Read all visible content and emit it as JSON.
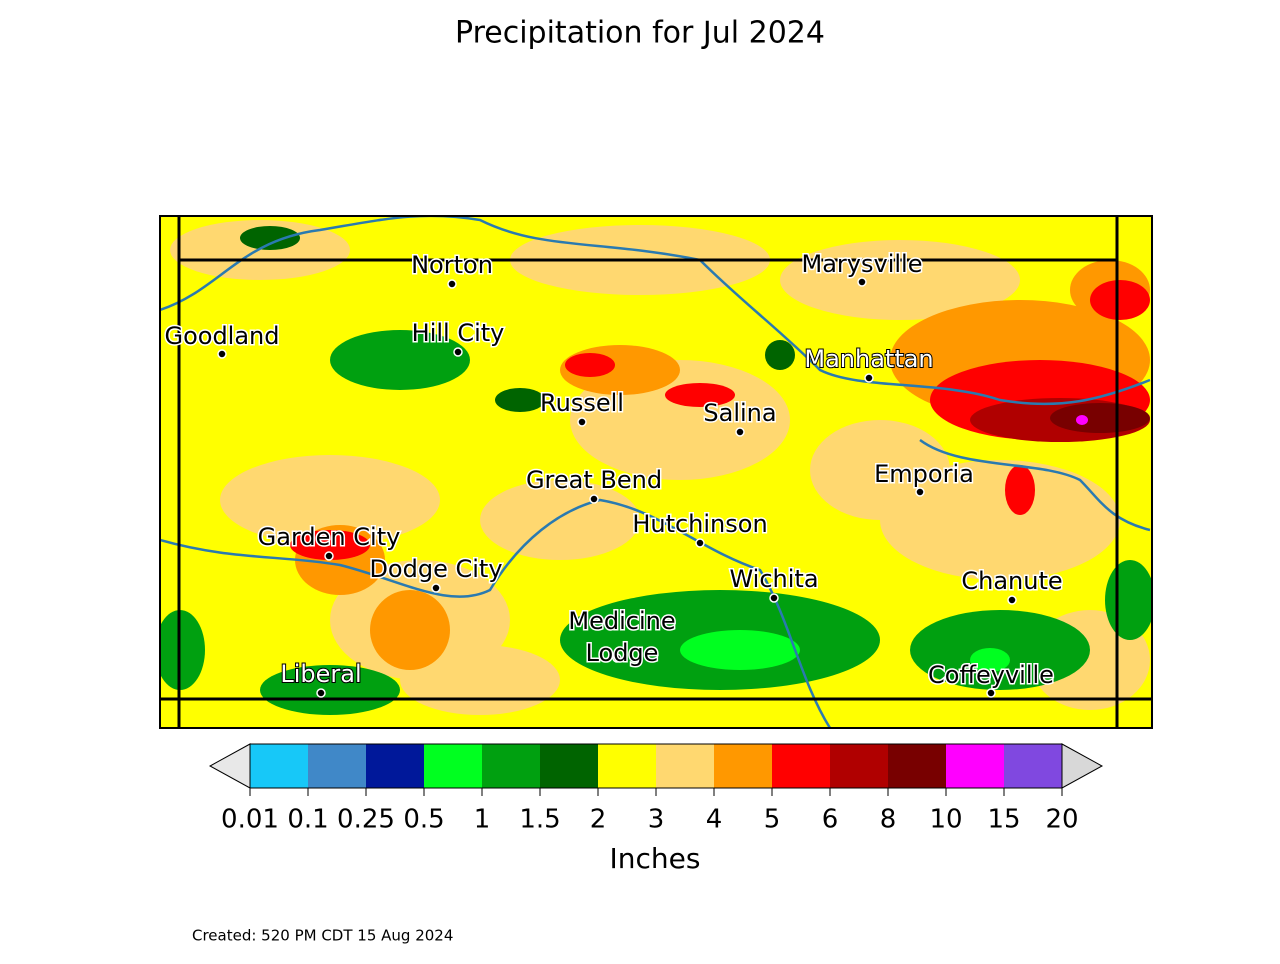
{
  "title": "Precipitation for Jul 2024",
  "map": {
    "cities": [
      "Norton",
      "Marysville",
      "Goodland",
      "Hill City",
      "Manhattan",
      "Russell",
      "Salina",
      "Emporia",
      "Great Bend",
      "Hutchinson",
      "Garden City",
      "Dodge City",
      "Wichita",
      "Chanute",
      "Medicine Lodge",
      "Liberal",
      "Coffeyville"
    ]
  },
  "colorbar": {
    "ticks": [
      0.01,
      0.1,
      0.25,
      0.5,
      1,
      1.5,
      2,
      3,
      4,
      5,
      6,
      8,
      10,
      15,
      20
    ],
    "colors": [
      "#17c8f8",
      "#4088c8",
      "#00189a",
      "#00ff20",
      "#00a010",
      "#006400",
      "#ffff00",
      "#ffd870",
      "#ff9800",
      "#ff0000",
      "#b00000",
      "#780000",
      "#ff00ff",
      "#8048e0"
    ],
    "label": "Inches"
  },
  "footer": "Created: 520 PM CDT 15 Aug 2024"
}
